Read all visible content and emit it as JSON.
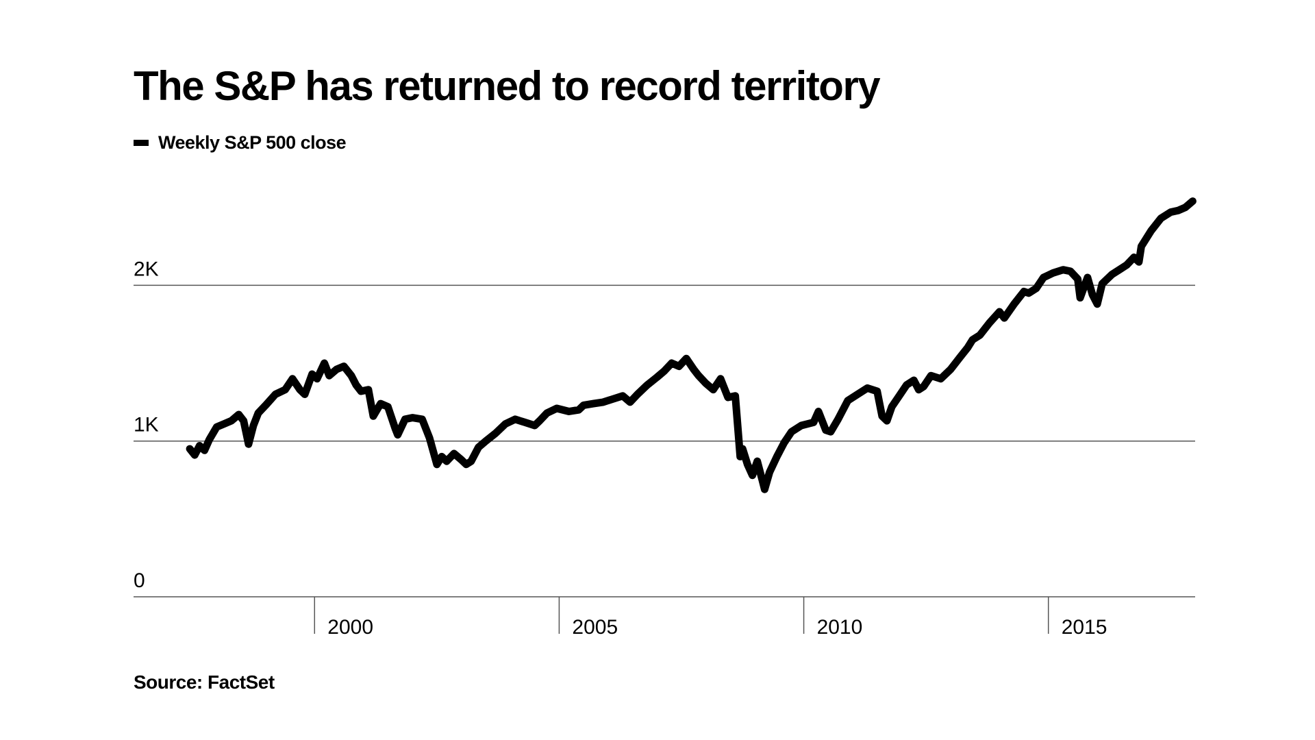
{
  "chart_data": {
    "type": "line",
    "title": "The S&P has returned to record territory",
    "source": "Source: FactSet",
    "xlabel": "",
    "ylabel": "",
    "xlim": [
      1996.3,
      2018.0
    ],
    "ylim": [
      0,
      2600
    ],
    "grid": true,
    "legend_position": "top-left",
    "y_ticks": [
      {
        "value": 0,
        "label": "0"
      },
      {
        "value": 1000,
        "label": "1K"
      },
      {
        "value": 2000,
        "label": "2K"
      }
    ],
    "x_ticks": [
      {
        "value": 2000,
        "label": "2000"
      },
      {
        "value": 2005,
        "label": "2005"
      },
      {
        "value": 2010,
        "label": "2010"
      },
      {
        "value": 2015,
        "label": "2015"
      }
    ],
    "colors": {
      "line": "#000000",
      "grid": "#555555"
    },
    "series": [
      {
        "name": "Weekly S&P 500 close",
        "x": [
          1997.45,
          1997.55,
          1997.65,
          1997.75,
          1997.85,
          1998.0,
          1998.15,
          1998.3,
          1998.45,
          1998.55,
          1998.65,
          1998.75,
          1998.85,
          1999.0,
          1999.2,
          1999.4,
          1999.55,
          1999.7,
          1999.8,
          1999.95,
          2000.05,
          2000.2,
          2000.3,
          2000.45,
          2000.6,
          2000.75,
          2000.85,
          2000.95,
          2001.1,
          2001.2,
          2001.35,
          2001.5,
          2001.65,
          2001.7,
          2001.85,
          2002.0,
          2002.2,
          2002.35,
          2002.5,
          2002.6,
          2002.7,
          2002.85,
          2003.0,
          2003.1,
          2003.2,
          2003.35,
          2003.5,
          2003.7,
          2003.9,
          2004.1,
          2004.3,
          2004.5,
          2004.6,
          2004.75,
          2004.95,
          2005.2,
          2005.4,
          2005.5,
          2005.7,
          2005.9,
          2006.1,
          2006.3,
          2006.45,
          2006.6,
          2006.8,
          2007.0,
          2007.15,
          2007.3,
          2007.45,
          2007.6,
          2007.75,
          2007.85,
          2008.0,
          2008.15,
          2008.3,
          2008.45,
          2008.6,
          2008.7,
          2008.75,
          2008.85,
          2008.95,
          2009.05,
          2009.15,
          2009.2,
          2009.3,
          2009.45,
          2009.6,
          2009.75,
          2009.95,
          2010.2,
          2010.3,
          2010.45,
          2010.55,
          2010.7,
          2010.9,
          2011.1,
          2011.3,
          2011.5,
          2011.6,
          2011.7,
          2011.8,
          2011.95,
          2012.1,
          2012.25,
          2012.35,
          2012.45,
          2012.6,
          2012.8,
          2012.9,
          2013.0,
          2013.2,
          2013.35,
          2013.45,
          2013.6,
          2013.8,
          2014.0,
          2014.1,
          2014.3,
          2014.5,
          2014.6,
          2014.75,
          2014.9,
          2015.1,
          2015.3,
          2015.45,
          2015.6,
          2015.65,
          2015.8,
          2015.9,
          2016.0,
          2016.1,
          2016.3,
          2016.45,
          2016.6,
          2016.75,
          2016.85,
          2016.9,
          2017.1,
          2017.3,
          2017.5,
          2017.65,
          2017.8,
          2017.95
        ],
        "values": [
          950,
          910,
          970,
          940,
          1010,
          1090,
          1110,
          1130,
          1170,
          1130,
          980,
          1100,
          1180,
          1230,
          1300,
          1330,
          1400,
          1330,
          1300,
          1430,
          1400,
          1500,
          1420,
          1460,
          1480,
          1420,
          1360,
          1320,
          1330,
          1160,
          1240,
          1220,
          1080,
          1040,
          1140,
          1150,
          1140,
          1020,
          850,
          900,
          870,
          920,
          880,
          850,
          870,
          960,
          1000,
          1050,
          1110,
          1140,
          1120,
          1100,
          1130,
          1180,
          1210,
          1190,
          1200,
          1230,
          1240,
          1250,
          1270,
          1290,
          1250,
          1300,
          1360,
          1410,
          1450,
          1500,
          1480,
          1530,
          1460,
          1420,
          1370,
          1330,
          1400,
          1280,
          1290,
          900,
          950,
          850,
          780,
          870,
          750,
          690,
          800,
          900,
          990,
          1060,
          1100,
          1120,
          1190,
          1070,
          1060,
          1140,
          1260,
          1300,
          1340,
          1320,
          1160,
          1130,
          1220,
          1290,
          1360,
          1390,
          1330,
          1350,
          1420,
          1400,
          1430,
          1460,
          1540,
          1600,
          1650,
          1680,
          1760,
          1830,
          1790,
          1880,
          1960,
          1950,
          1980,
          2050,
          2080,
          2100,
          2090,
          2040,
          1920,
          2050,
          1940,
          1880,
          2010,
          2070,
          2100,
          2130,
          2180,
          2150,
          2250,
          2350,
          2430,
          2470,
          2480,
          2500,
          2540
        ]
      }
    ]
  }
}
